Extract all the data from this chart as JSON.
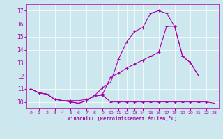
{
  "xlabel": "Windchill (Refroidissement éolien,°C)",
  "background_color": "#cce8ee",
  "line_color": "#aa00aa",
  "grid_color": "#ffffff",
  "xlim": [
    -0.5,
    23.5
  ],
  "ylim": [
    9.5,
    17.5
  ],
  "yticks": [
    10,
    11,
    12,
    13,
    14,
    15,
    16,
    17
  ],
  "xticks": [
    0,
    1,
    2,
    3,
    4,
    5,
    6,
    7,
    8,
    9,
    10,
    11,
    12,
    13,
    14,
    15,
    16,
    17,
    18,
    19,
    20,
    21,
    22,
    23
  ],
  "line1_y": [
    11.0,
    10.7,
    10.6,
    10.2,
    10.1,
    10.0,
    9.9,
    10.1,
    10.5,
    11.1,
    11.5,
    13.3,
    14.6,
    15.4,
    15.7,
    16.8,
    17.0,
    16.8,
    15.8,
    13.5,
    13.0,
    12.0,
    null,
    null
  ],
  "line2_y": [
    11.0,
    10.7,
    10.6,
    10.2,
    10.1,
    10.1,
    10.1,
    10.2,
    10.4,
    10.6,
    11.9,
    12.2,
    12.6,
    12.9,
    13.2,
    13.5,
    13.8,
    15.8,
    15.8,
    13.5,
    13.0,
    12.0,
    null,
    null
  ],
  "line3_y": [
    11.0,
    10.7,
    10.6,
    10.2,
    10.1,
    10.0,
    9.9,
    10.1,
    10.5,
    10.5,
    10.0,
    10.0,
    10.0,
    10.0,
    10.0,
    10.0,
    10.0,
    10.0,
    10.0,
    10.0,
    10.0,
    10.0,
    10.0,
    9.9
  ]
}
